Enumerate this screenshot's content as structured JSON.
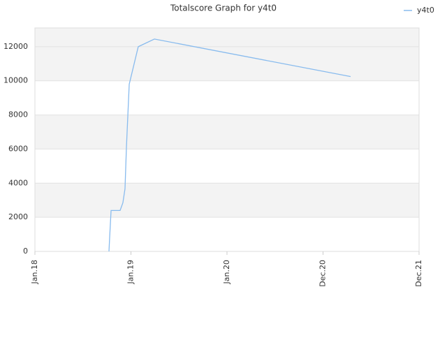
{
  "chart_data": {
    "type": "line",
    "title": "Totalscore Graph for y4t0",
    "x": [
      0.771,
      0.778,
      0.793,
      0.887,
      0.916,
      0.938,
      0.953,
      0.982,
      1.076,
      1.244,
      3.287
    ],
    "series": [
      {
        "name": "y4t0",
        "color": "#88bbee",
        "values": [
          0,
          800,
          2400,
          2400,
          2850,
          3670,
          6120,
          9800,
          12000,
          12450,
          10250
        ]
      }
    ],
    "xlim": [
      0,
      4
    ],
    "xticks": [
      {
        "value": 0,
        "label": "Jan.18"
      },
      {
        "value": 1,
        "label": "Jan.19"
      },
      {
        "value": 2,
        "label": "Jan.20"
      },
      {
        "value": 3,
        "label": "Dec.20"
      },
      {
        "value": 4,
        "label": "Dec.21"
      }
    ],
    "ylim": [
      0,
      13100
    ],
    "yticks": [
      0,
      2000,
      4000,
      6000,
      8000,
      10000,
      12000
    ],
    "grid": true,
    "legend": "top-right"
  }
}
